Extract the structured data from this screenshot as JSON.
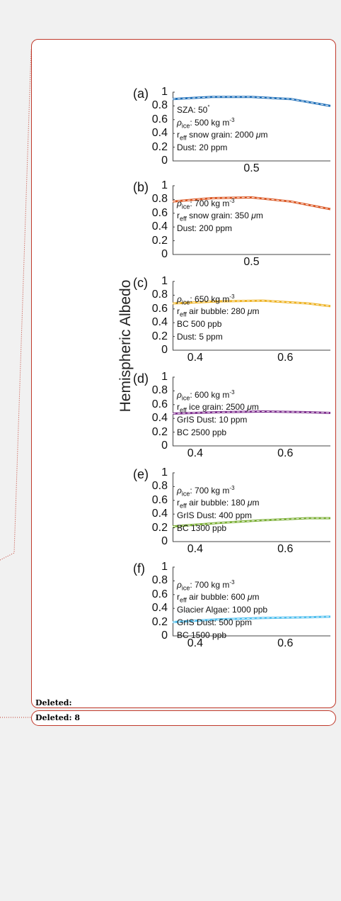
{
  "comments": {
    "label": "Deleted:",
    "value": "8"
  },
  "figure": {
    "ylabel": "Hemispheric Albedo",
    "panels": [
      {
        "label": "(a)",
        "color": "#1f6fb8",
        "yticks": [
          "1",
          "0.8",
          "0.6",
          "0.4",
          "0.2",
          "0"
        ],
        "xticks": [
          "0.5"
        ],
        "annotations": [
          "SZA: 50°",
          "ρice: 500 kg m-3",
          "reff snow grain: 2000 μm",
          "Dust: 20 ppm"
        ]
      },
      {
        "label": "(b)",
        "color": "#d9531e",
        "yticks": [
          "1",
          "0.8",
          "0.6",
          "0.4",
          "0.2",
          "0"
        ],
        "xticks": [
          "0.5"
        ],
        "annotations": [
          "ρice: 700 kg m-3",
          "reff snow grain: 350 μm",
          "Dust: 200 ppm"
        ]
      },
      {
        "label": "(c)",
        "color": "#edb120",
        "yticks": [
          "1",
          "0.8",
          "0.6",
          "0.4",
          "0.2",
          "0"
        ],
        "xticks": [
          "0.4",
          "0.6"
        ],
        "annotations": [
          "ρice: 650 kg m-3",
          "reff air bubble: 280 μm",
          "BC 500 ppb",
          "Dust: 5 ppm"
        ]
      },
      {
        "label": "(d)",
        "color": "#7e2f8e",
        "yticks": [
          "1",
          "0.8",
          "0.6",
          "0.4",
          "0.2",
          "0"
        ],
        "xticks": [
          "0.4",
          "0.6"
        ],
        "annotations": [
          "ρice: 600 kg m-3",
          "reff ice grain: 2500 μm",
          "GrIS Dust: 10 ppm",
          "BC 2500 ppb"
        ]
      },
      {
        "label": "(e)",
        "color": "#77ac30",
        "yticks": [
          "1",
          "0.8",
          "0.6",
          "0.4",
          "0.2",
          "0"
        ],
        "xticks": [
          "0.4",
          "0.6"
        ],
        "annotations": [
          "ρice: 700 kg m-3",
          "reff air bubble: 180 μm",
          "GrIS Dust: 400 ppm",
          "BC 1300 ppb"
        ]
      },
      {
        "label": "(f)",
        "color": "#4dbeee",
        "yticks": [
          "1",
          "0.8",
          "0.6",
          "0.4",
          "0.2",
          "0"
        ],
        "xticks": [
          "0.4",
          "0.6"
        ],
        "annotations": [
          "ρice: 700 kg m-3",
          "reff air bubble: 600 μm",
          "Glacier Algae: 1000 ppb",
          "GrIS Dust: 500 ppm",
          "BC 1500 ppb"
        ]
      }
    ]
  },
  "chart_data": [
    {
      "type": "line",
      "x": [
        0.3,
        0.4,
        0.5,
        0.6,
        0.7
      ],
      "series": [
        {
          "values": [
            0.9,
            0.93,
            0.93,
            0.9,
            0.8
          ]
        }
      ],
      "ylim": [
        0,
        1
      ]
    },
    {
      "type": "line",
      "x": [
        0.3,
        0.4,
        0.5,
        0.6,
        0.7
      ],
      "series": [
        {
          "values": [
            0.77,
            0.82,
            0.83,
            0.77,
            0.66
          ]
        }
      ],
      "ylim": [
        0,
        1
      ]
    },
    {
      "type": "line",
      "x": [
        0.35,
        0.45,
        0.55,
        0.65,
        0.7
      ],
      "series": [
        {
          "values": [
            0.68,
            0.71,
            0.72,
            0.68,
            0.64
          ]
        }
      ],
      "ylim": [
        0,
        1
      ]
    },
    {
      "type": "line",
      "x": [
        0.35,
        0.45,
        0.55,
        0.65,
        0.7
      ],
      "series": [
        {
          "values": [
            0.47,
            0.49,
            0.5,
            0.49,
            0.48
          ]
        }
      ],
      "ylim": [
        0,
        1
      ]
    },
    {
      "type": "line",
      "x": [
        0.35,
        0.45,
        0.55,
        0.65,
        0.7
      ],
      "series": [
        {
          "values": [
            0.22,
            0.27,
            0.31,
            0.34,
            0.34
          ]
        }
      ],
      "ylim": [
        0,
        1
      ]
    },
    {
      "type": "line",
      "x": [
        0.35,
        0.45,
        0.55,
        0.65,
        0.7
      ],
      "series": [
        {
          "values": [
            0.2,
            0.24,
            0.26,
            0.27,
            0.28
          ]
        }
      ],
      "ylim": [
        0,
        1
      ]
    }
  ]
}
